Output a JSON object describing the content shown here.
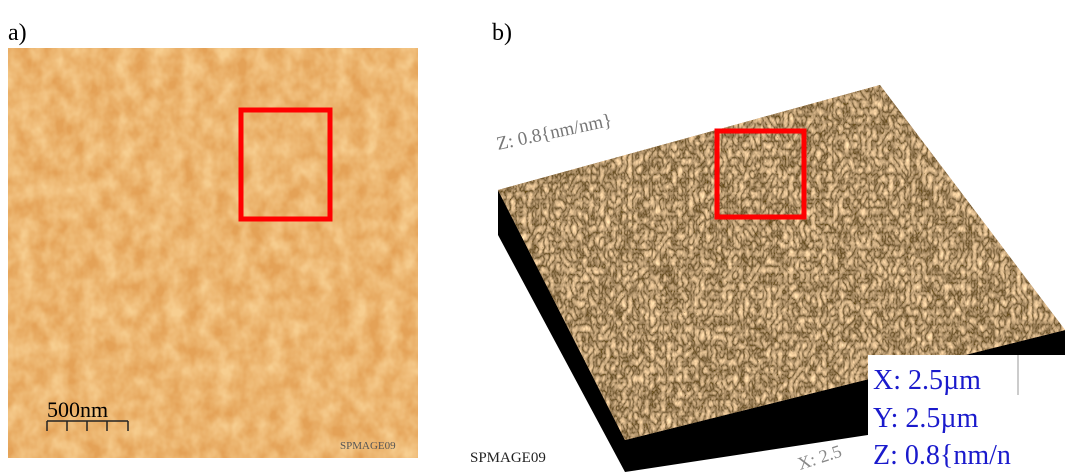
{
  "panels": [
    {
      "label": "a)",
      "scale_bar": "500nm",
      "watermark": "SPMAGE09"
    },
    {
      "label": "b)",
      "z_axis": "Z: 0.8{nm/nm}",
      "watermark": "SPMAGE09",
      "x_axis": "X: 2.5",
      "legend": [
        "X: 2.5µm",
        "Y: 2.5µm",
        "Z: 0.8{nm/n"
      ]
    }
  ]
}
